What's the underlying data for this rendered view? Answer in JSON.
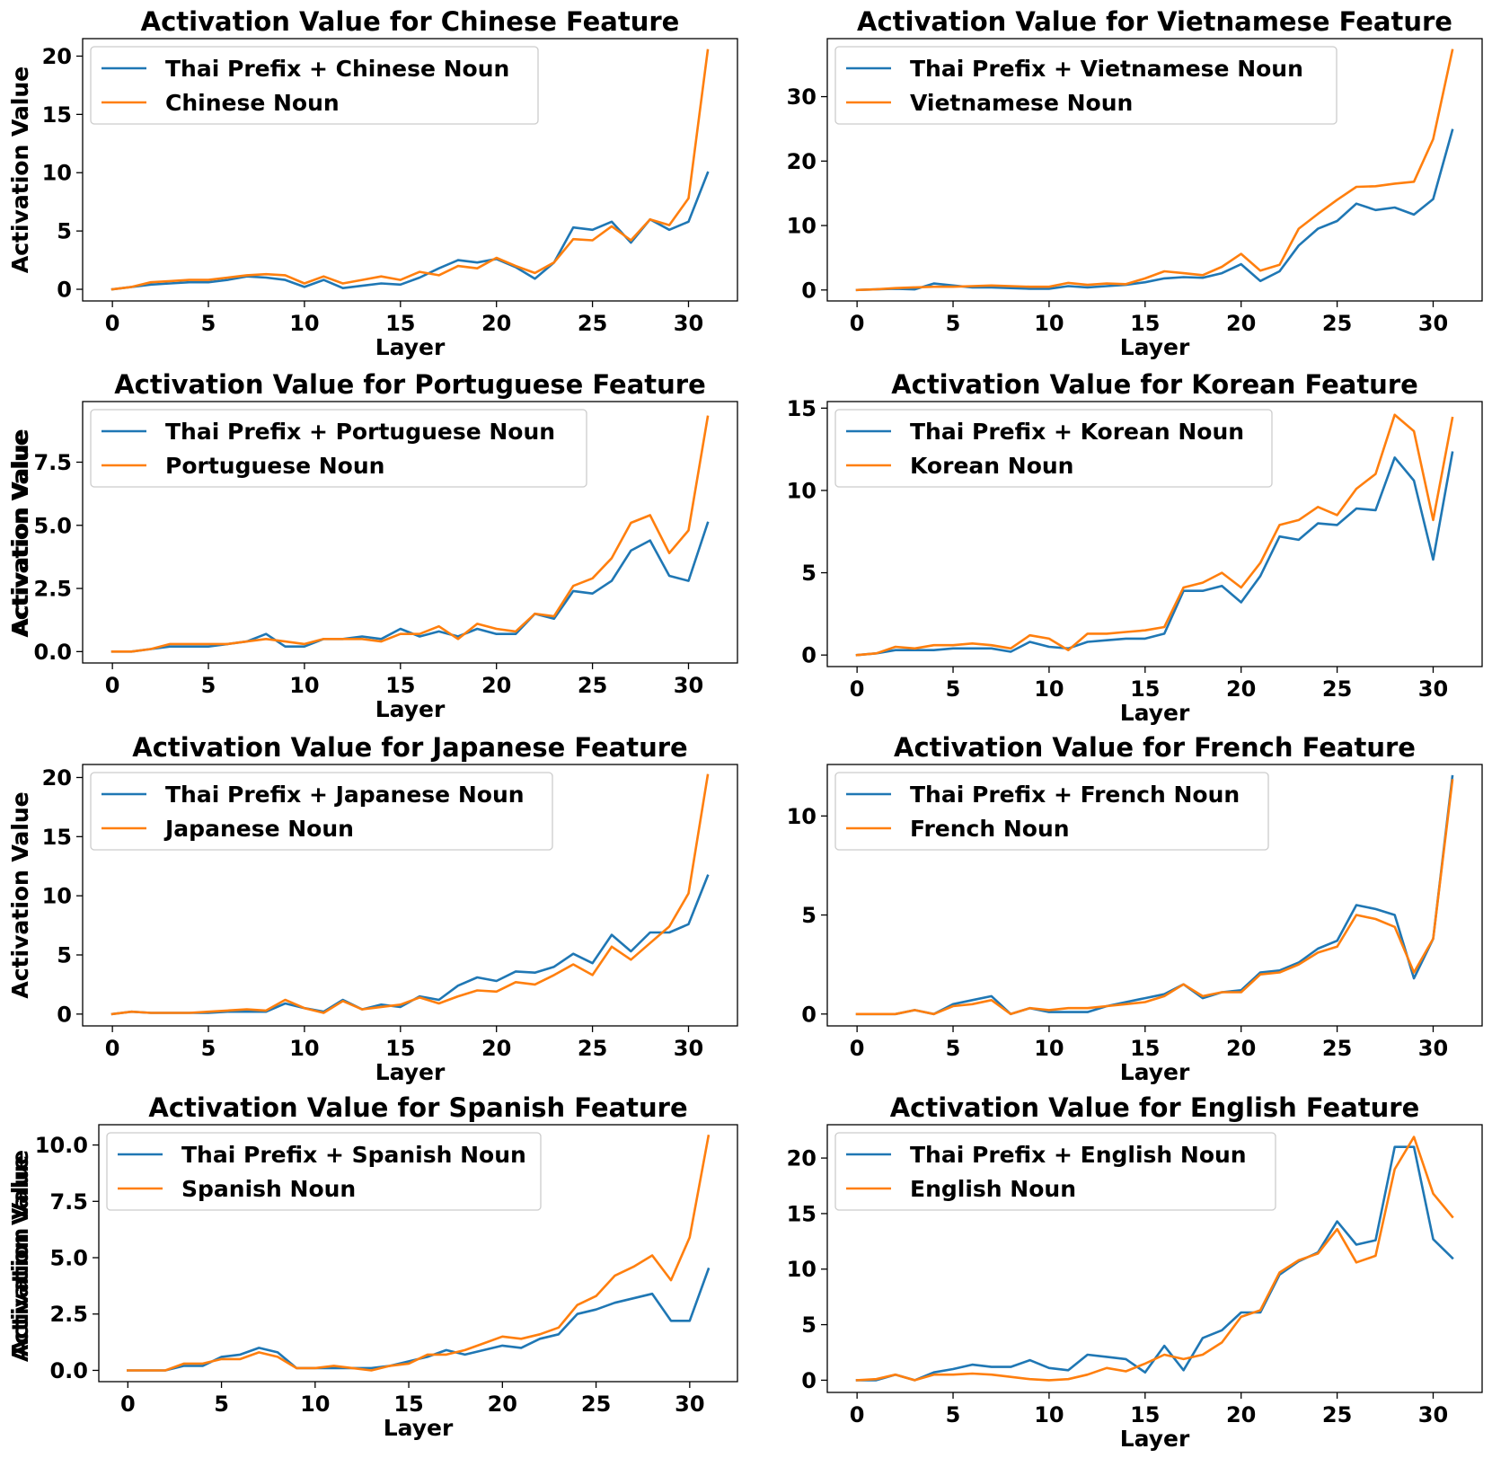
{
  "chart_data": [
    {
      "type": "line",
      "title": "Activation Value for Chinese Feature",
      "xlabel": "Layer",
      "ylabel": "Activation Value",
      "xlim": [
        -1.55,
        32.55
      ],
      "ylim": [
        -1.0,
        21.5
      ],
      "xticks": [
        0,
        5,
        10,
        15,
        20,
        25,
        30
      ],
      "yticks": [
        0,
        5,
        10,
        15,
        20
      ],
      "ytick_labels": [
        "0",
        "5",
        "10",
        "15",
        "20"
      ],
      "legend_position": "upper-left",
      "series": [
        {
          "name": "Thai Prefix + Chinese Noun",
          "color": "#1f77b4",
          "values": [
            0.0,
            0.2,
            0.4,
            0.5,
            0.6,
            0.6,
            0.8,
            1.1,
            1.0,
            0.8,
            0.2,
            0.8,
            0.1,
            0.3,
            0.5,
            0.4,
            1.0,
            1.8,
            2.5,
            2.3,
            2.6,
            1.9,
            0.9,
            2.3,
            5.3,
            5.1,
            5.8,
            4.0,
            6.0,
            5.1,
            5.8,
            10.0
          ]
        },
        {
          "name": "Chinese Noun",
          "color": "#ff7f0e",
          "values": [
            0.0,
            0.2,
            0.6,
            0.7,
            0.8,
            0.8,
            1.0,
            1.2,
            1.3,
            1.2,
            0.5,
            1.1,
            0.5,
            0.8,
            1.1,
            0.8,
            1.5,
            1.2,
            2.0,
            1.8,
            2.7,
            2.0,
            1.4,
            2.3,
            4.3,
            4.2,
            5.4,
            4.2,
            6.0,
            5.5,
            7.8,
            20.5
          ]
        }
      ]
    },
    {
      "type": "line",
      "title": "Activation Value for Vietnamese Feature",
      "xlabel": "Layer",
      "ylabel": "Activation Value",
      "xlim": [
        -1.55,
        32.55
      ],
      "ylim": [
        -1.7,
        39.0
      ],
      "xticks": [
        0,
        5,
        10,
        15,
        20,
        25,
        30
      ],
      "yticks": [
        0,
        10,
        20,
        30
      ],
      "ytick_labels": [
        "0",
        "10",
        "20",
        "30"
      ],
      "legend_position": "upper-left",
      "series": [
        {
          "name": "Thai Prefix + Vietnamese Noun",
          "color": "#1f77b4",
          "values": [
            0.0,
            0.1,
            0.2,
            0.1,
            1.0,
            0.7,
            0.4,
            0.4,
            0.3,
            0.2,
            0.2,
            0.6,
            0.4,
            0.6,
            0.8,
            1.2,
            1.8,
            2.0,
            1.9,
            2.6,
            4.0,
            1.4,
            2.9,
            6.9,
            9.5,
            10.7,
            13.4,
            12.4,
            12.8,
            11.7,
            14.1,
            24.8
          ]
        },
        {
          "name": "Vietnamese Noun",
          "color": "#ff7f0e",
          "values": [
            0.0,
            0.1,
            0.3,
            0.4,
            0.5,
            0.5,
            0.6,
            0.7,
            0.6,
            0.5,
            0.5,
            1.1,
            0.8,
            1.0,
            0.9,
            1.8,
            2.9,
            2.6,
            2.3,
            3.6,
            5.6,
            3.0,
            3.9,
            9.5,
            11.8,
            14.0,
            16.0,
            16.1,
            16.5,
            16.8,
            23.4,
            37.2
          ]
        }
      ]
    },
    {
      "type": "line",
      "title": "Activation Value for Portuguese Feature",
      "xlabel": "Layer",
      "ylabel": "Activation Value",
      "xlim": [
        -1.55,
        32.55
      ],
      "ylim": [
        -0.45,
        9.9
      ],
      "xticks": [
        0,
        5,
        10,
        15,
        20,
        25,
        30
      ],
      "yticks": [
        0,
        2.5,
        5.0,
        7.5
      ],
      "ytick_labels": [
        "0.0",
        "2.5",
        "5.0",
        "7.5"
      ],
      "legend_position": "upper-left",
      "series": [
        {
          "name": "Thai Prefix + Portuguese Noun",
          "color": "#1f77b4",
          "values": [
            0.0,
            0.0,
            0.1,
            0.2,
            0.2,
            0.2,
            0.3,
            0.4,
            0.7,
            0.2,
            0.2,
            0.5,
            0.5,
            0.6,
            0.5,
            0.9,
            0.6,
            0.8,
            0.6,
            0.9,
            0.7,
            0.7,
            1.5,
            1.3,
            2.4,
            2.3,
            2.8,
            4.0,
            4.4,
            3.0,
            2.8,
            5.1
          ]
        },
        {
          "name": "Portuguese Noun",
          "color": "#ff7f0e",
          "values": [
            0.0,
            0.0,
            0.1,
            0.3,
            0.3,
            0.3,
            0.3,
            0.4,
            0.5,
            0.4,
            0.3,
            0.5,
            0.5,
            0.5,
            0.4,
            0.7,
            0.7,
            1.0,
            0.5,
            1.1,
            0.9,
            0.8,
            1.5,
            1.4,
            2.6,
            2.9,
            3.7,
            5.1,
            5.4,
            3.9,
            4.8,
            9.3
          ]
        }
      ]
    },
    {
      "type": "line",
      "title": "Activation Value for Korean Feature",
      "xlabel": "Layer",
      "ylabel": "Activation Value",
      "xlim": [
        -1.55,
        32.55
      ],
      "ylim": [
        -0.7,
        15.4
      ],
      "xticks": [
        0,
        5,
        10,
        15,
        20,
        25,
        30
      ],
      "yticks": [
        0,
        5,
        10,
        15
      ],
      "ytick_labels": [
        "0",
        "5",
        "10",
        "15"
      ],
      "legend_position": "upper-left",
      "series": [
        {
          "name": "Thai Prefix + Korean Noun",
          "color": "#1f77b4",
          "values": [
            0.0,
            0.1,
            0.3,
            0.3,
            0.3,
            0.4,
            0.4,
            0.4,
            0.2,
            0.8,
            0.5,
            0.4,
            0.8,
            0.9,
            1.0,
            1.0,
            1.3,
            3.9,
            3.9,
            4.2,
            3.2,
            4.8,
            7.2,
            7.0,
            8.0,
            7.9,
            8.9,
            8.8,
            12.0,
            10.6,
            5.8,
            12.3
          ]
        },
        {
          "name": "Korean Noun",
          "color": "#ff7f0e",
          "values": [
            0.0,
            0.1,
            0.5,
            0.4,
            0.6,
            0.6,
            0.7,
            0.6,
            0.4,
            1.2,
            1.0,
            0.3,
            1.3,
            1.3,
            1.4,
            1.5,
            1.7,
            4.1,
            4.4,
            5.0,
            4.1,
            5.6,
            7.9,
            8.2,
            9.0,
            8.5,
            10.1,
            11.0,
            14.6,
            13.6,
            8.2,
            14.4
          ]
        }
      ]
    },
    {
      "type": "line",
      "title": "Activation Value for Japanese Feature",
      "xlabel": "Layer",
      "ylabel": "Activation Value",
      "xlim": [
        -1.55,
        32.55
      ],
      "ylim": [
        -1.0,
        21.1
      ],
      "xticks": [
        0,
        5,
        10,
        15,
        20,
        25,
        30
      ],
      "yticks": [
        0,
        5,
        10,
        15,
        20
      ],
      "ytick_labels": [
        "0",
        "5",
        "10",
        "15",
        "20"
      ],
      "legend_position": "upper-left",
      "series": [
        {
          "name": "Thai Prefix + Japanese Noun",
          "color": "#1f77b4",
          "values": [
            0.0,
            0.2,
            0.1,
            0.1,
            0.1,
            0.1,
            0.2,
            0.2,
            0.2,
            0.9,
            0.5,
            0.2,
            1.2,
            0.4,
            0.8,
            0.6,
            1.5,
            1.2,
            2.4,
            3.1,
            2.8,
            3.6,
            3.5,
            4.0,
            5.1,
            4.3,
            6.7,
            5.3,
            6.9,
            6.9,
            7.6,
            11.7
          ]
        },
        {
          "name": "Japanese Noun",
          "color": "#ff7f0e",
          "values": [
            0.0,
            0.2,
            0.1,
            0.1,
            0.1,
            0.2,
            0.3,
            0.4,
            0.3,
            1.2,
            0.5,
            0.1,
            1.1,
            0.4,
            0.6,
            0.8,
            1.4,
            0.9,
            1.5,
            2.0,
            1.9,
            2.7,
            2.5,
            3.3,
            4.2,
            3.3,
            5.7,
            4.6,
            6.0,
            7.4,
            10.2,
            20.2
          ]
        }
      ]
    },
    {
      "type": "line",
      "title": "Activation Value for French Feature",
      "xlabel": "Layer",
      "ylabel": "Activation Value",
      "xlim": [
        -1.55,
        32.55
      ],
      "ylim": [
        -0.6,
        12.6
      ],
      "xticks": [
        0,
        5,
        10,
        15,
        20,
        25,
        30
      ],
      "yticks": [
        0,
        5,
        10
      ],
      "ytick_labels": [
        "0",
        "5",
        "10"
      ],
      "legend_position": "upper-left",
      "series": [
        {
          "name": "Thai Prefix + French Noun",
          "color": "#1f77b4",
          "values": [
            0.0,
            0.0,
            0.0,
            0.2,
            0.0,
            0.5,
            0.7,
            0.9,
            0.0,
            0.3,
            0.1,
            0.1,
            0.1,
            0.4,
            0.6,
            0.8,
            1.0,
            1.5,
            0.8,
            1.1,
            1.2,
            2.1,
            2.2,
            2.6,
            3.3,
            3.7,
            5.5,
            5.3,
            5.0,
            1.8,
            3.8,
            12.0
          ]
        },
        {
          "name": "French Noun",
          "color": "#ff7f0e",
          "values": [
            0.0,
            0.0,
            0.0,
            0.2,
            0.0,
            0.4,
            0.5,
            0.7,
            0.0,
            0.3,
            0.2,
            0.3,
            0.3,
            0.4,
            0.5,
            0.6,
            0.9,
            1.5,
            0.9,
            1.1,
            1.1,
            2.0,
            2.1,
            2.5,
            3.1,
            3.4,
            5.0,
            4.8,
            4.4,
            2.1,
            3.8,
            11.8
          ]
        }
      ]
    },
    {
      "type": "line",
      "title": "Activation Value for Spanish Feature",
      "xlabel": "Layer",
      "ylabel": "Activation Value",
      "xlim": [
        -1.55,
        32.55
      ],
      "ylim": [
        -0.5,
        10.9
      ],
      "xticks": [
        0,
        5,
        10,
        15,
        20,
        25,
        30
      ],
      "yticks": [
        0,
        2.5,
        5.0,
        7.5,
        10.0
      ],
      "ytick_labels": [
        "0.0",
        "2.5",
        "5.0",
        "7.5",
        "10.0"
      ],
      "legend_position": "upper-left",
      "series": [
        {
          "name": "Thai Prefix + Spanish Noun",
          "color": "#1f77b4",
          "values": [
            0.0,
            0.0,
            0.0,
            0.2,
            0.2,
            0.6,
            0.7,
            1.0,
            0.8,
            0.1,
            0.1,
            0.1,
            0.1,
            0.1,
            0.2,
            0.4,
            0.6,
            0.9,
            0.7,
            0.9,
            1.1,
            1.0,
            1.4,
            1.6,
            2.5,
            2.7,
            3.0,
            3.2,
            3.4,
            2.2,
            2.2,
            4.5
          ]
        },
        {
          "name": "Spanish Noun",
          "color": "#ff7f0e",
          "values": [
            0.0,
            0.0,
            0.0,
            0.3,
            0.3,
            0.5,
            0.5,
            0.8,
            0.6,
            0.1,
            0.1,
            0.2,
            0.1,
            0.0,
            0.2,
            0.3,
            0.7,
            0.7,
            0.9,
            1.2,
            1.5,
            1.4,
            1.6,
            1.9,
            2.9,
            3.3,
            4.2,
            4.6,
            5.1,
            4.0,
            5.9,
            10.4
          ]
        }
      ]
    },
    {
      "type": "line",
      "title": "Activation Value for English Feature",
      "xlabel": "Layer",
      "ylabel": "Activation Value",
      "xlim": [
        -1.55,
        32.55
      ],
      "ylim": [
        -1.1,
        23.0
      ],
      "xticks": [
        0,
        5,
        10,
        15,
        20,
        25,
        30
      ],
      "yticks": [
        0,
        5,
        10,
        15,
        20
      ],
      "ytick_labels": [
        "0",
        "5",
        "10",
        "15",
        "20"
      ],
      "legend_position": "upper-left",
      "series": [
        {
          "name": "Thai Prefix + English Noun",
          "color": "#1f77b4",
          "values": [
            0.0,
            0.0,
            0.5,
            0.0,
            0.7,
            1.0,
            1.4,
            1.2,
            1.2,
            1.8,
            1.1,
            0.9,
            2.3,
            2.1,
            1.9,
            0.7,
            3.1,
            0.9,
            3.8,
            4.5,
            6.1,
            6.1,
            9.5,
            10.7,
            11.5,
            14.3,
            12.2,
            12.6,
            21.0,
            21.0,
            12.7,
            11.0
          ]
        },
        {
          "name": "English Noun",
          "color": "#ff7f0e",
          "values": [
            0.0,
            0.1,
            0.5,
            0.0,
            0.5,
            0.5,
            0.6,
            0.5,
            0.3,
            0.1,
            0.0,
            0.1,
            0.5,
            1.1,
            0.8,
            1.5,
            2.3,
            1.9,
            2.3,
            3.4,
            5.7,
            6.3,
            9.7,
            10.8,
            11.4,
            13.6,
            10.6,
            11.2,
            19.0,
            21.9,
            16.8,
            14.7
          ]
        }
      ]
    }
  ]
}
